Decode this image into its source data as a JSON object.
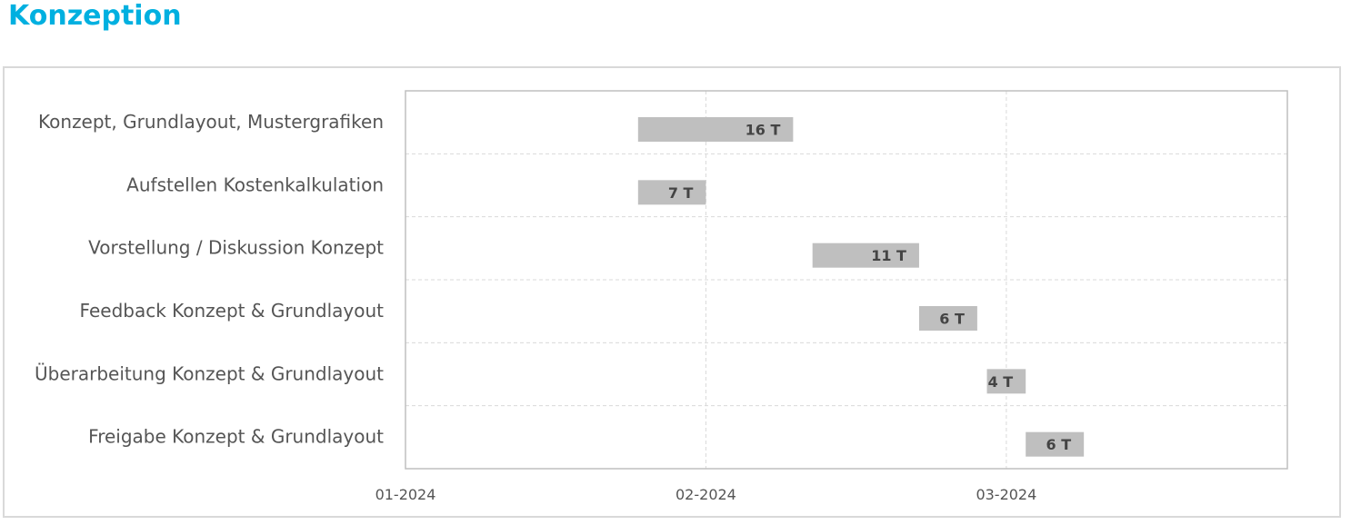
{
  "page": {
    "title": "Konzeption",
    "title_color": "#00B0E0"
  },
  "colors": {
    "bar": "#BFBFBF",
    "grid": "#D9D9D9",
    "plot_border": "#BFBFBF"
  },
  "chart_data": {
    "type": "gantt-bar",
    "x_axis": {
      "unit": "days since 01-2024",
      "min": 0,
      "max": 91,
      "ticks": [
        {
          "label": "01-2024",
          "value": 0
        },
        {
          "label": "02-2024",
          "value": 31
        },
        {
          "label": "03-2024",
          "value": 62
        }
      ]
    },
    "tasks": [
      {
        "name": "Konzept, Grundlayout, Mustergrafiken",
        "start": 24,
        "duration": 16,
        "label": "16 T"
      },
      {
        "name": "Aufstellen Kostenkalkulation",
        "start": 24,
        "duration": 7,
        "label": "7 T"
      },
      {
        "name": "Vorstellung / Diskussion Konzept",
        "start": 42,
        "duration": 11,
        "label": "11 T"
      },
      {
        "name": "Feedback Konzept & Grundlayout",
        "start": 53,
        "duration": 6,
        "label": "6 T"
      },
      {
        "name": "Überarbeitung Konzept & Grundlayout",
        "start": 60,
        "duration": 4,
        "label": "4 T"
      },
      {
        "name": "Freigabe Konzept & Grundlayout",
        "start": 64,
        "duration": 6,
        "label": "6 T"
      }
    ]
  }
}
